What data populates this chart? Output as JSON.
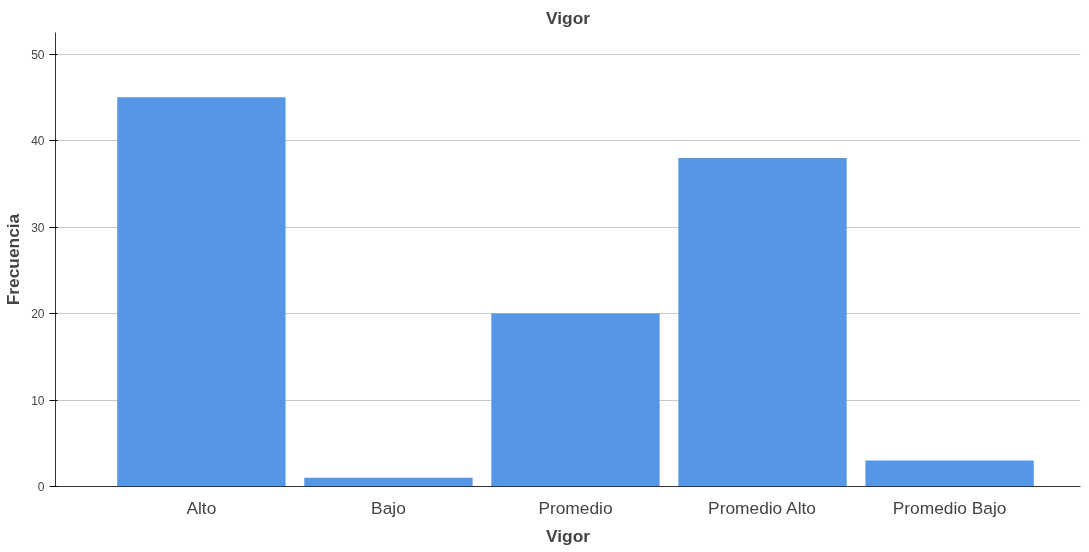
{
  "chart_data": {
    "type": "bar",
    "title": "Vigor",
    "xlabel": "Vigor",
    "ylabel": "Frecuencia",
    "categories": [
      "Alto",
      "Bajo",
      "Promedio",
      "Promedio Alto",
      "Promedio Bajo"
    ],
    "values": [
      45,
      1,
      20,
      38,
      3
    ],
    "color": "#5596e6",
    "ylim": [
      0,
      52.5
    ],
    "yticks": [
      0,
      10,
      20,
      30,
      40,
      50
    ],
    "grid": "y"
  }
}
